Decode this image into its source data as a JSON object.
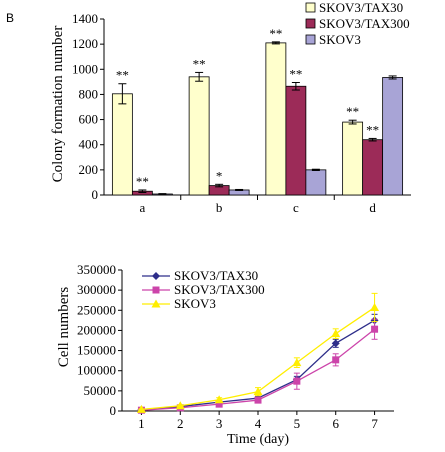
{
  "panel_label": "B",
  "chart_data": [
    {
      "type": "bar",
      "categories": [
        "a",
        "b",
        "c",
        "d"
      ],
      "series": [
        {
          "name": "SKOV3/TAX30",
          "color": "#ffffcc",
          "values": [
            805,
            940,
            1210,
            580
          ],
          "errors": [
            80,
            35,
            8,
            15
          ],
          "annotations": [
            "**",
            "**",
            "**",
            "**"
          ]
        },
        {
          "name": "SKOV3/TAX300",
          "color": "#9c2b58",
          "values": [
            30,
            75,
            865,
            440
          ],
          "errors": [
            10,
            10,
            30,
            10
          ],
          "annotations": [
            "**",
            "*",
            "**",
            "**"
          ]
        },
        {
          "name": "SKOV3",
          "color": "#a8a4d6",
          "values": [
            8,
            40,
            200,
            935
          ],
          "errors": [
            3,
            4,
            5,
            12
          ],
          "annotations": [
            "",
            "",
            "",
            ""
          ]
        }
      ],
      "ylabel": "Colony formation number",
      "xlabel": "",
      "ylim": [
        0,
        1400
      ],
      "yticks": [
        "0",
        "200",
        "400",
        "600",
        "800",
        "1000",
        "1200",
        "1400"
      ],
      "legend_position": "top-right",
      "grid": false
    },
    {
      "type": "line",
      "x": [
        1,
        2,
        3,
        4,
        5,
        6,
        7
      ],
      "xticks": [
        "1",
        "2",
        "3",
        "4",
        "5",
        "6",
        "7"
      ],
      "series": [
        {
          "name": "SKOV3/TAX30",
          "color": "#2e2e8a",
          "marker": "diamond",
          "values": [
            3000,
            11000,
            22000,
            32000,
            78000,
            168000,
            225000
          ],
          "errors": [
            1000,
            2000,
            3000,
            4000,
            8000,
            10000,
            15000
          ]
        },
        {
          "name": "SKOV3/TAX300",
          "color": "#cc44aa",
          "marker": "square",
          "values": [
            2000,
            8000,
            17000,
            27000,
            74000,
            127000,
            203000
          ],
          "errors": [
            1000,
            2000,
            3000,
            5000,
            20000,
            15000,
            25000
          ]
        },
        {
          "name": "SKOV3",
          "color": "#ffee00",
          "marker": "triangle",
          "values": [
            4000,
            13000,
            28000,
            48000,
            120000,
            192000,
            257000
          ],
          "errors": [
            1000,
            2000,
            5000,
            10000,
            12000,
            12000,
            35000
          ]
        }
      ],
      "xlabel": "Time (day)",
      "ylabel": "Cell numbers",
      "ylim": [
        0,
        350000
      ],
      "yticks": [
        "0",
        "50000",
        "100000",
        "150000",
        "200000",
        "250000",
        "300000",
        "350000"
      ],
      "legend_position": "top-left",
      "grid": false
    }
  ]
}
